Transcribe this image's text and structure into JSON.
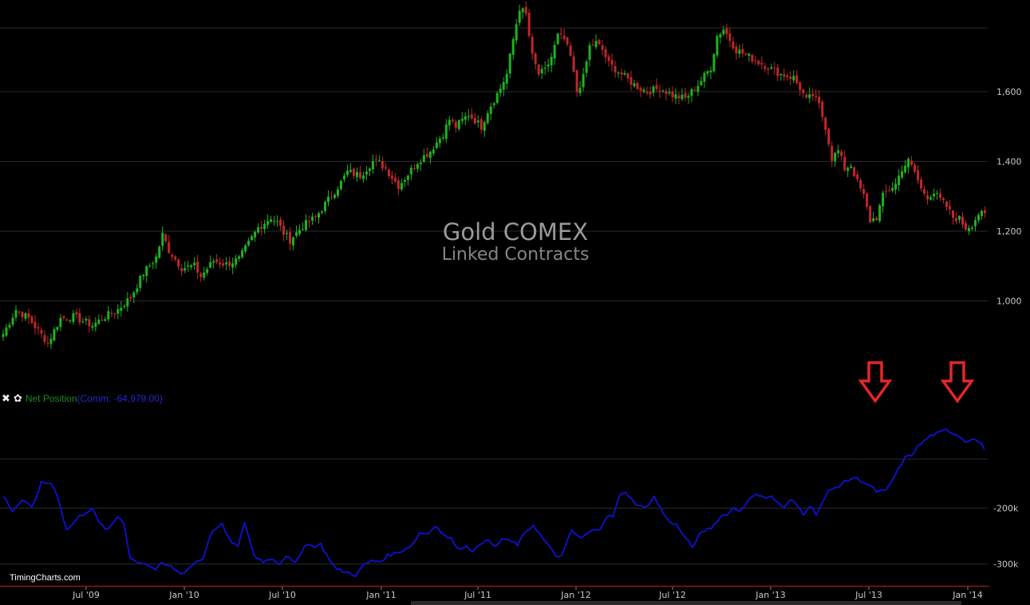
{
  "colors": {
    "up": "#1db31d",
    "down": "#c2262a",
    "net_line": "#1010d8",
    "arrow": "#e5262a",
    "separator": "#8a1b1b"
  },
  "legend": {
    "close_icon": "✖",
    "gear_icon": "✿",
    "label": "Net Position",
    "value_text": "(Comm: -64,979.00)"
  },
  "credit": "TimingCharts.com",
  "chart_data": [
    {
      "type": "candlestick",
      "title": "Gold COMEX",
      "subtitle": "Linked Contracts",
      "y_ticks": [
        1000,
        1200,
        1400,
        1600
      ],
      "y_tick_labels": [
        "1,000",
        "1,200",
        "1,400",
        "1,600"
      ],
      "ylim": [
        830,
        1930
      ],
      "x_ticks": [
        "Jul '09",
        "Jan '10",
        "Jul '10",
        "Jan '11",
        "Jul '11",
        "Jan '12",
        "Jul '12",
        "Jan '13",
        "Jul '13",
        "Jan '14"
      ],
      "grid": true,
      "close_anchors": [
        [
          0,
          905
        ],
        [
          4,
          975
        ],
        [
          8,
          950
        ],
        [
          14,
          880
        ],
        [
          18,
          950
        ],
        [
          22,
          955
        ],
        [
          28,
          930
        ],
        [
          32,
          955
        ],
        [
          36,
          975
        ],
        [
          40,
          1010
        ],
        [
          44,
          1080
        ],
        [
          48,
          1125
        ],
        [
          50,
          1190
        ],
        [
          52,
          1145
        ],
        [
          56,
          1095
        ],
        [
          60,
          1100
        ],
        [
          62,
          1070
        ],
        [
          66,
          1115
        ],
        [
          70,
          1105
        ],
        [
          74,
          1120
        ],
        [
          78,
          1180
        ],
        [
          80,
          1210
        ],
        [
          84,
          1240
        ],
        [
          86,
          1225
        ],
        [
          88,
          1195
        ],
        [
          90,
          1175
        ],
        [
          94,
          1215
        ],
        [
          98,
          1240
        ],
        [
          102,
          1290
        ],
        [
          106,
          1340
        ],
        [
          108,
          1370
        ],
        [
          112,
          1360
        ],
        [
          116,
          1400
        ],
        [
          118,
          1395
        ],
        [
          120,
          1380
        ],
        [
          124,
          1330
        ],
        [
          128,
          1375
        ],
        [
          130,
          1400
        ],
        [
          134,
          1430
        ],
        [
          138,
          1480
        ],
        [
          140,
          1520
        ],
        [
          142,
          1500
        ],
        [
          146,
          1535
        ],
        [
          150,
          1500
        ],
        [
          152,
          1545
        ],
        [
          156,
          1610
        ],
        [
          158,
          1650
        ],
        [
          160,
          1750
        ],
        [
          162,
          1840
        ],
        [
          164,
          1820
        ],
        [
          166,
          1700
        ],
        [
          168,
          1650
        ],
        [
          170,
          1660
        ],
        [
          172,
          1700
        ],
        [
          174,
          1760
        ],
        [
          176,
          1750
        ],
        [
          178,
          1700
        ],
        [
          180,
          1600
        ],
        [
          182,
          1640
        ],
        [
          184,
          1730
        ],
        [
          186,
          1740
        ],
        [
          188,
          1720
        ],
        [
          190,
          1680
        ],
        [
          194,
          1650
        ],
        [
          198,
          1620
        ],
        [
          202,
          1600
        ],
        [
          206,
          1610
        ],
        [
          210,
          1590
        ],
        [
          214,
          1580
        ],
        [
          218,
          1620
        ],
        [
          222,
          1670
        ],
        [
          224,
          1760
        ],
        [
          226,
          1780
        ],
        [
          228,
          1750
        ],
        [
          230,
          1720
        ],
        [
          234,
          1700
        ],
        [
          238,
          1680
        ],
        [
          242,
          1660
        ],
        [
          244,
          1650
        ],
        [
          248,
          1640
        ],
        [
          250,
          1610
        ],
        [
          252,
          1575
        ],
        [
          254,
          1590
        ],
        [
          256,
          1560
        ],
        [
          258,
          1500
        ],
        [
          260,
          1410
        ],
        [
          262,
          1430
        ],
        [
          264,
          1380
        ],
        [
          266,
          1390
        ],
        [
          268,
          1340
        ],
        [
          270,
          1300
        ],
        [
          272,
          1230
        ],
        [
          274,
          1240
        ],
        [
          276,
          1300
        ],
        [
          278,
          1320
        ],
        [
          280,
          1335
        ],
        [
          282,
          1380
        ],
        [
          284,
          1400
        ],
        [
          286,
          1370
        ],
        [
          288,
          1320
        ],
        [
          290,
          1300
        ],
        [
          292,
          1310
        ],
        [
          294,
          1290
        ],
        [
          296,
          1270
        ],
        [
          298,
          1240
        ],
        [
          300,
          1235
        ],
        [
          302,
          1210
        ],
        [
          304,
          1220
        ],
        [
          306,
          1250
        ],
        [
          308,
          1245
        ]
      ],
      "n_bars": 309
    },
    {
      "type": "line",
      "name": "Net Position",
      "y_ticks": [
        -200000,
        -300000
      ],
      "y_tick_labels": [
        "-200k",
        "-300k"
      ],
      "ylim": [
        -335000,
        -100000
      ],
      "anchors": [
        [
          0,
          -178
        ],
        [
          3,
          -205
        ],
        [
          6,
          -185
        ],
        [
          9,
          -200
        ],
        [
          12,
          -155
        ],
        [
          15,
          -155
        ],
        [
          17,
          -175
        ],
        [
          20,
          -240
        ],
        [
          24,
          -215
        ],
        [
          28,
          -200
        ],
        [
          30,
          -225
        ],
        [
          33,
          -240
        ],
        [
          36,
          -215
        ],
        [
          38,
          -225
        ],
        [
          40,
          -290
        ],
        [
          42,
          -295
        ],
        [
          45,
          -300
        ],
        [
          48,
          -310
        ],
        [
          50,
          -300
        ],
        [
          53,
          -305
        ],
        [
          56,
          -318
        ],
        [
          58,
          -310
        ],
        [
          61,
          -295
        ],
        [
          63,
          -290
        ],
        [
          65,
          -250
        ],
        [
          67,
          -235
        ],
        [
          69,
          -230
        ],
        [
          71,
          -255
        ],
        [
          74,
          -270
        ],
        [
          76,
          -225
        ],
        [
          79,
          -285
        ],
        [
          82,
          -295
        ],
        [
          85,
          -290
        ],
        [
          87,
          -300
        ],
        [
          89,
          -285
        ],
        [
          92,
          -300
        ],
        [
          95,
          -265
        ],
        [
          98,
          -268
        ],
        [
          100,
          -265
        ],
        [
          102,
          -285
        ],
        [
          105,
          -310
        ],
        [
          108,
          -315
        ],
        [
          111,
          -320
        ],
        [
          114,
          -300
        ],
        [
          116,
          -295
        ],
        [
          119,
          -295
        ],
        [
          121,
          -285
        ],
        [
          124,
          -280
        ],
        [
          126,
          -275
        ],
        [
          129,
          -265
        ],
        [
          131,
          -245
        ],
        [
          134,
          -245
        ],
        [
          136,
          -230
        ],
        [
          139,
          -250
        ],
        [
          141,
          -255
        ],
        [
          144,
          -275
        ],
        [
          146,
          -265
        ],
        [
          148,
          -280
        ],
        [
          150,
          -265
        ],
        [
          152,
          -255
        ],
        [
          155,
          -270
        ],
        [
          157,
          -255
        ],
        [
          160,
          -260
        ],
        [
          162,
          -265
        ],
        [
          165,
          -240
        ],
        [
          167,
          -230
        ],
        [
          170,
          -255
        ],
        [
          172,
          -270
        ],
        [
          174,
          -285
        ],
        [
          176,
          -285
        ],
        [
          179,
          -240
        ],
        [
          182,
          -255
        ],
        [
          184,
          -245
        ],
        [
          186,
          -240
        ],
        [
          188,
          -235
        ],
        [
          190,
          -215
        ],
        [
          192,
          -215
        ],
        [
          194,
          -180
        ],
        [
          196,
          -170
        ],
        [
          198,
          -185
        ],
        [
          200,
          -195
        ],
        [
          202,
          -200
        ],
        [
          205,
          -180
        ],
        [
          207,
          -200
        ],
        [
          209,
          -220
        ],
        [
          212,
          -230
        ],
        [
          215,
          -255
        ],
        [
          217,
          -270
        ],
        [
          219,
          -250
        ],
        [
          221,
          -240
        ],
        [
          223,
          -235
        ],
        [
          226,
          -215
        ],
        [
          228,
          -210
        ],
        [
          230,
          -200
        ],
        [
          232,
          -205
        ],
        [
          234,
          -190
        ],
        [
          236,
          -180
        ],
        [
          238,
          -175
        ],
        [
          240,
          -180
        ],
        [
          242,
          -180
        ],
        [
          244,
          -190
        ],
        [
          246,
          -200
        ],
        [
          248,
          -185
        ],
        [
          250,
          -195
        ],
        [
          252,
          -210
        ],
        [
          254,
          -195
        ],
        [
          256,
          -210
        ],
        [
          258,
          -190
        ],
        [
          260,
          -170
        ],
        [
          263,
          -160
        ],
        [
          266,
          -150
        ],
        [
          268,
          -145
        ],
        [
          270,
          -150
        ],
        [
          273,
          -160
        ],
        [
          275,
          -170
        ],
        [
          278,
          -170
        ],
        [
          280,
          -150
        ],
        [
          282,
          -130
        ],
        [
          284,
          -110
        ],
        [
          286,
          -105
        ],
        [
          288,
          -90
        ],
        [
          290,
          -80
        ],
        [
          292,
          -70
        ],
        [
          295,
          -65
        ],
        [
          297,
          -60
        ],
        [
          299,
          -65
        ],
        [
          301,
          -70
        ],
        [
          303,
          -80
        ],
        [
          305,
          -75
        ],
        [
          307,
          -80
        ],
        [
          309,
          -92
        ]
      ],
      "n_points": 310
    }
  ]
}
